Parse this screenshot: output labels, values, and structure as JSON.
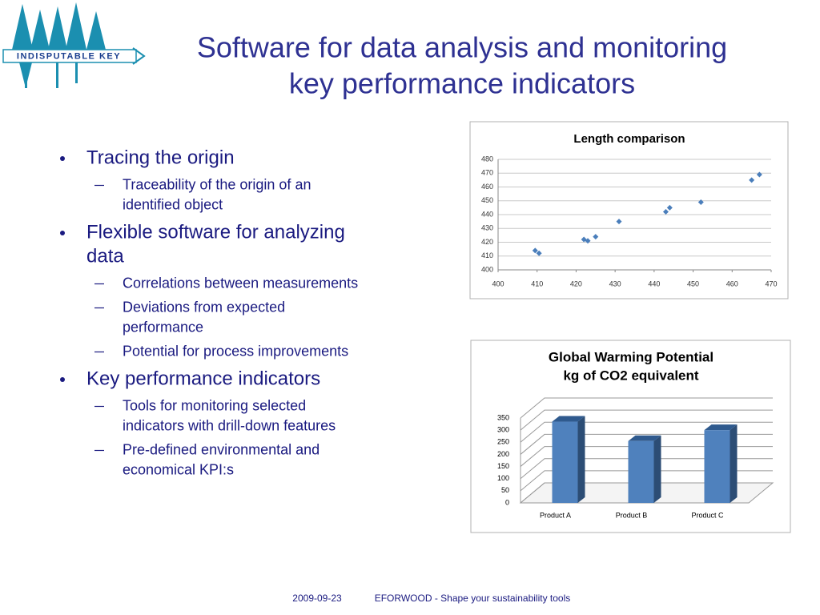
{
  "logo": {
    "text": "INDISPUTABLE KEY"
  },
  "title": [
    "Software for data analysis and monitoring",
    "key performance indicators"
  ],
  "bullets": [
    {
      "lines": [
        "Tracing the origin"
      ],
      "sub": [
        {
          "lines": [
            "Traceability of the origin of an",
            "identified object"
          ]
        }
      ]
    },
    {
      "lines": [
        "Flexible software for analyzing",
        "data"
      ],
      "sub": [
        {
          "lines": [
            "Correlations between measurements"
          ]
        },
        {
          "lines": [
            "Deviations from expected",
            "performance"
          ]
        },
        {
          "lines": [
            "Potential for process improvements"
          ]
        }
      ]
    },
    {
      "lines": [
        "Key performance indicators"
      ],
      "sub": [
        {
          "lines": [
            "Tools for monitoring selected",
            "indicators with drill-down features"
          ]
        },
        {
          "lines": [
            "Pre-defined environmental and",
            "economical KPI:s"
          ]
        }
      ]
    }
  ],
  "chart_data": [
    {
      "type": "scatter",
      "title": "Length comparison",
      "color": "#4a7ebb",
      "x": [
        409.5,
        410.5,
        422,
        423,
        425,
        431,
        443,
        444,
        452,
        465,
        467
      ],
      "values": [
        414,
        412,
        422,
        421,
        424,
        435,
        442,
        445,
        449,
        465,
        469
      ],
      "xlim": [
        400,
        470
      ],
      "xticks": [
        400,
        410,
        420,
        430,
        440,
        450,
        460,
        470
      ],
      "ylim": [
        400,
        480
      ],
      "yticks": [
        400,
        410,
        420,
        430,
        440,
        450,
        460,
        470,
        480
      ],
      "grid": true
    },
    {
      "type": "bar3d",
      "title": "Global Warming Potential",
      "subtitle": "kg of CO2 equivalent",
      "color": "#4f81bd",
      "categories": [
        "Product A",
        "Product B",
        "Product C"
      ],
      "values": [
        335,
        255,
        300
      ],
      "ylim": [
        0,
        350
      ],
      "yticks": [
        0,
        50,
        100,
        150,
        200,
        250,
        300,
        350
      ],
      "grid": true
    }
  ],
  "footer": {
    "date": "2009-09-23",
    "text": "EFORWOOD - Shape your sustainability tools"
  }
}
